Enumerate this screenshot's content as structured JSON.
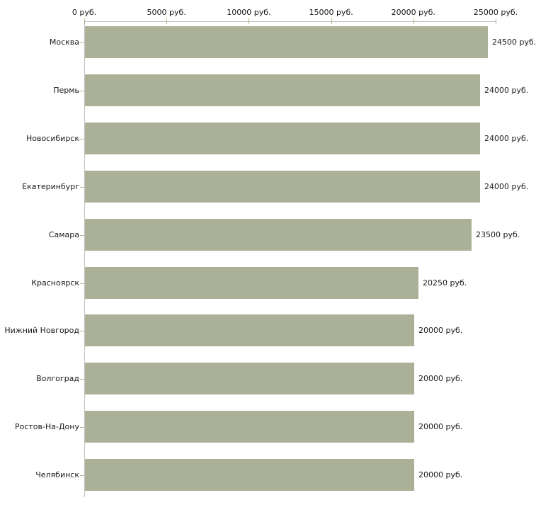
{
  "chart_data": {
    "type": "bar",
    "orientation": "horizontal",
    "title": "",
    "xlabel": "",
    "ylabel": "",
    "unit": "руб.",
    "categories": [
      "Москва",
      "Пермь",
      "Новосибирск",
      "Екатеринбург",
      "Самара",
      "Красноярск",
      "Нижний Новгород",
      "Волгоград",
      "Ростов-На-Дону",
      "Челябинск"
    ],
    "values": [
      24500,
      24000,
      24000,
      24000,
      23500,
      20250,
      20000,
      20000,
      20000,
      20000
    ],
    "value_labels": [
      "24500 руб.",
      "24000 руб.",
      "24000 руб.",
      "24000 руб.",
      "23500 руб.",
      "20250 руб.",
      "20000 руб.",
      "20000 руб.",
      "20000 руб.",
      "20000 руб."
    ],
    "x_axis": {
      "position": "top",
      "min": 0,
      "max": 25000,
      "ticks": [
        0,
        5000,
        10000,
        15000,
        20000,
        25000
      ],
      "tick_labels": [
        "0 руб.",
        "5000 руб.",
        "10000 руб.",
        "15000 руб.",
        "20000 руб.",
        "25000 руб."
      ]
    },
    "grid": false,
    "legend": false,
    "bar_color": "#aab197",
    "axis_line_color": "#bfbfbf",
    "tick_color": "#b3b184",
    "text_color": "#1a1a1a"
  }
}
